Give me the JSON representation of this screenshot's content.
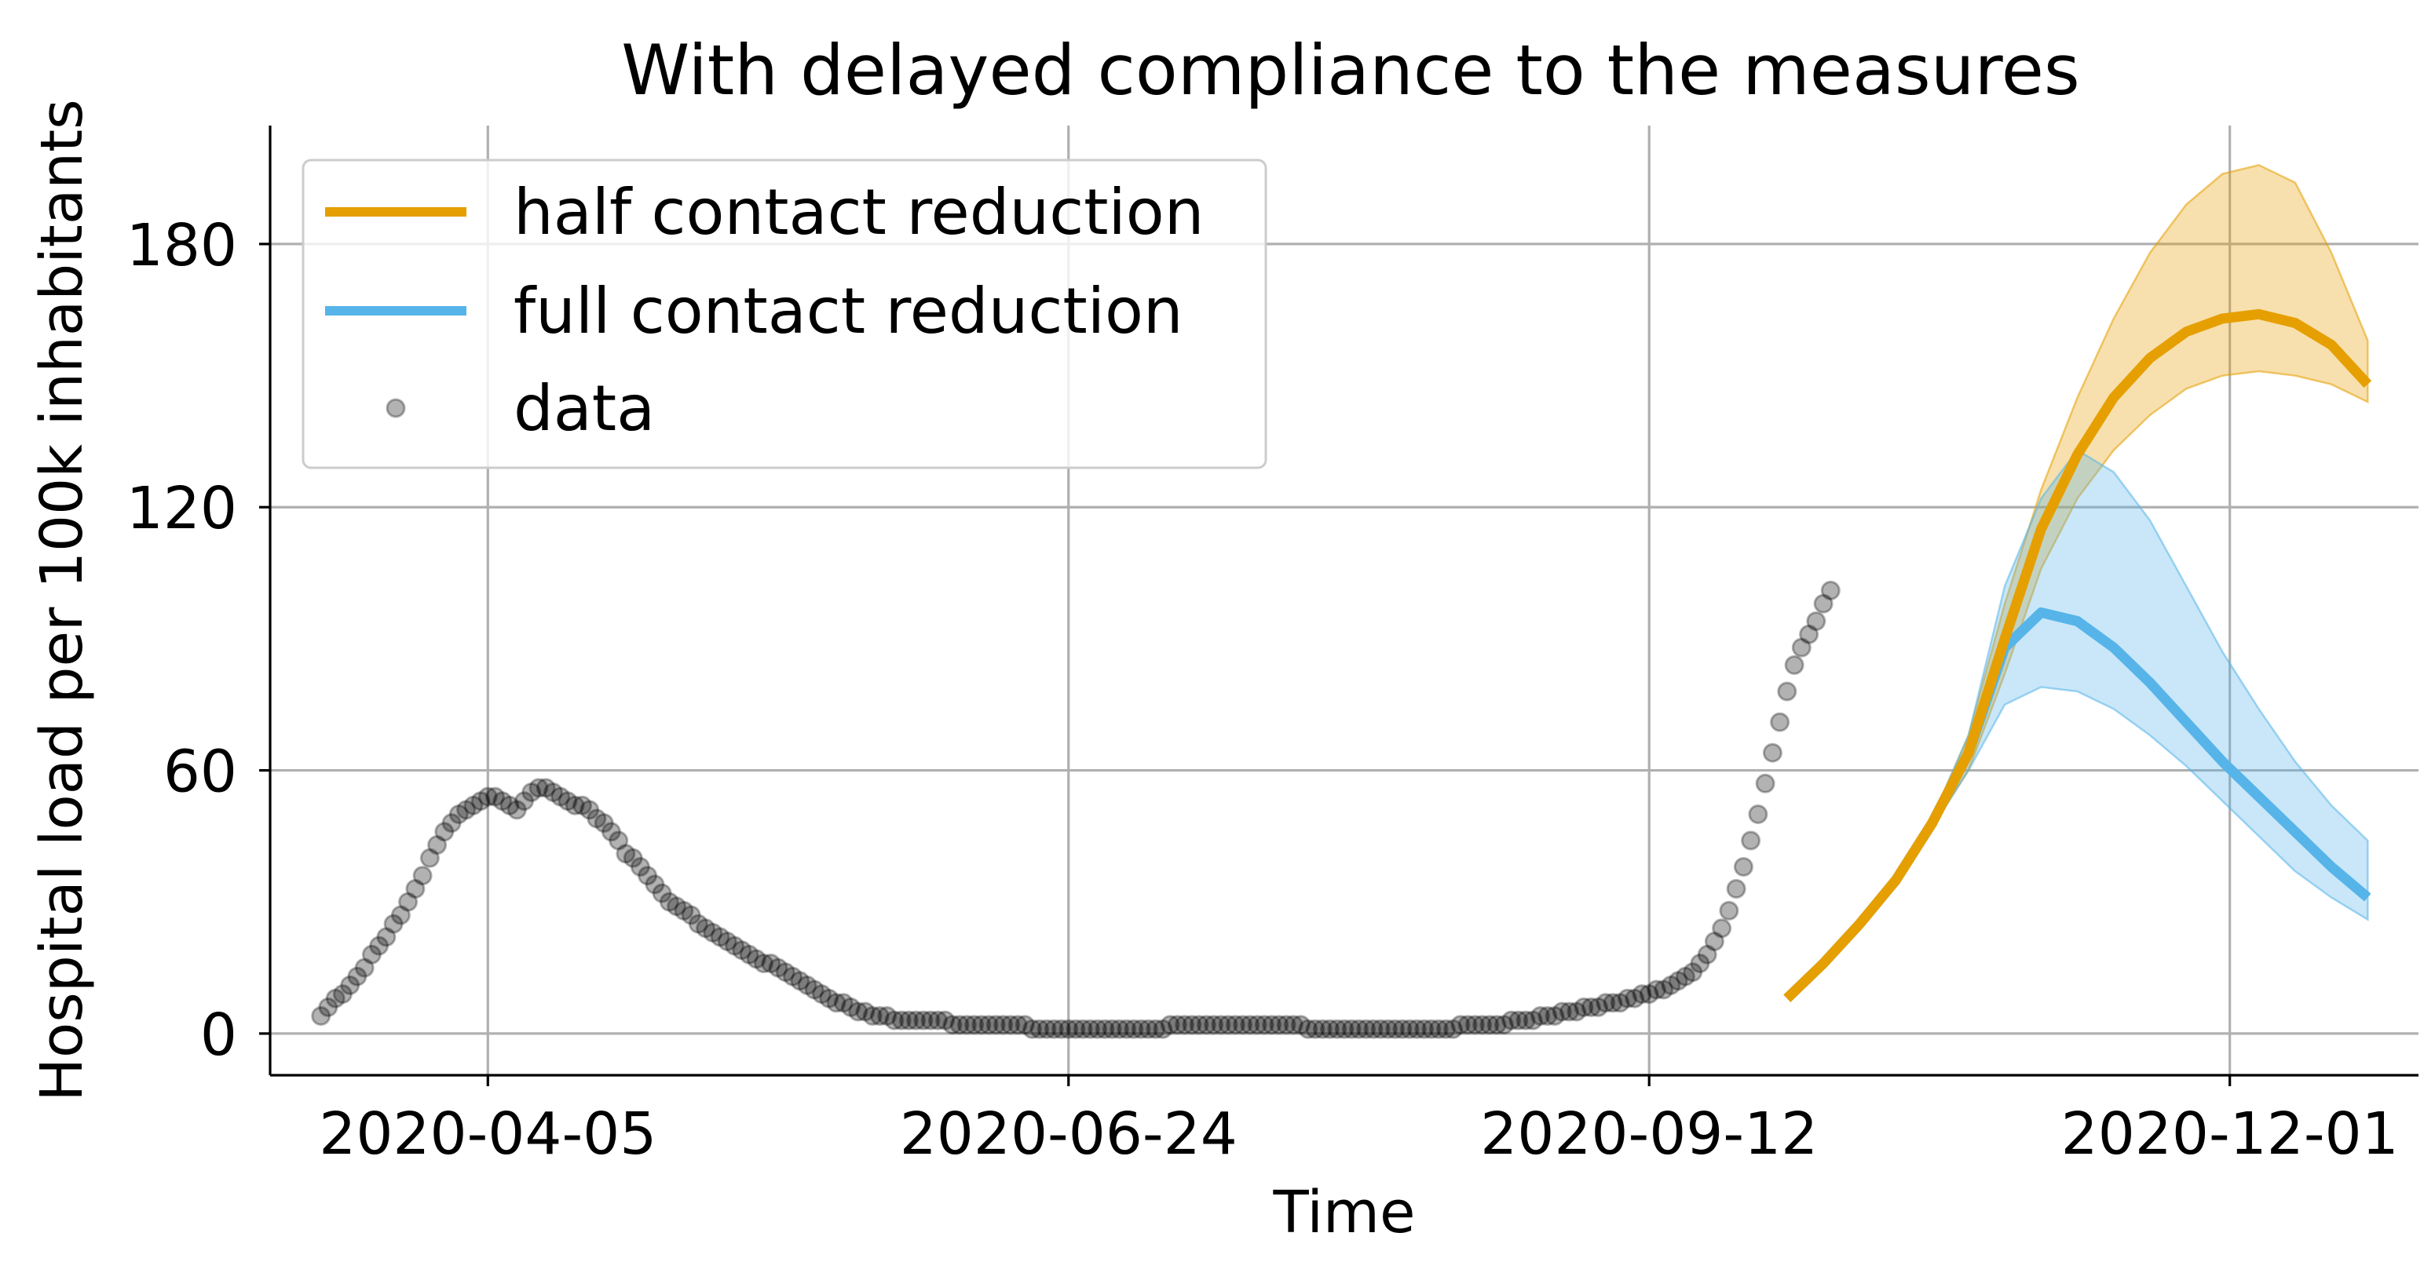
{
  "chart_data": {
    "type": "line",
    "title": "With delayed compliance to the measures",
    "xlabel": "Time",
    "ylabel": "Hospital load per 100k inhabitants",
    "x_tick_labels": [
      "2020-04-05",
      "2020-06-24",
      "2020-09-12",
      "2020-12-01"
    ],
    "x_tick_values": [
      "2020-04-05",
      "2020-06-24",
      "2020-09-12",
      "2020-12-01"
    ],
    "y_tick_values": [
      0,
      60,
      120,
      180
    ],
    "xlim": [
      "2020-03-06",
      "2020-12-27"
    ],
    "ylim": [
      -9.5,
      207
    ],
    "grid": true,
    "legend_position": "top-left",
    "legend": [
      {
        "label": "half contact reduction",
        "kind": "line",
        "color": "#E69F00"
      },
      {
        "label": "full contact reduction",
        "kind": "line",
        "color": "#56B4E9"
      },
      {
        "label": "data",
        "kind": "marker",
        "color": "#808080"
      }
    ],
    "series": [
      {
        "name": "half contact reduction",
        "color": "#E69F00",
        "x": [
          "2020-10-01",
          "2020-10-06",
          "2020-10-11",
          "2020-10-16",
          "2020-10-21",
          "2020-10-26",
          "2020-10-31",
          "2020-11-05",
          "2020-11-10",
          "2020-11-15",
          "2020-11-20",
          "2020-11-25",
          "2020-11-30",
          "2020-12-05",
          "2020-12-10",
          "2020-12-15",
          "2020-12-20"
        ],
        "y": [
          8,
          16,
          25,
          35,
          48,
          64,
          90,
          115,
          132,
          145,
          154,
          160,
          163,
          164,
          162,
          157,
          148
        ],
        "band_lower": [
          8,
          16,
          25,
          35,
          47,
          60,
          82,
          106,
          122,
          133,
          141,
          147,
          150,
          151,
          150,
          148,
          144
        ],
        "band_upper": [
          8,
          16,
          25,
          35,
          49,
          68,
          98,
          124,
          145,
          163,
          178,
          189,
          196,
          198,
          194,
          178,
          158
        ]
      },
      {
        "name": "full contact reduction",
        "color": "#56B4E9",
        "x": [
          "2020-10-01",
          "2020-10-06",
          "2020-10-11",
          "2020-10-16",
          "2020-10-21",
          "2020-10-26",
          "2020-10-31",
          "2020-11-05",
          "2020-11-10",
          "2020-11-15",
          "2020-11-20",
          "2020-11-25",
          "2020-11-30",
          "2020-12-05",
          "2020-12-10",
          "2020-12-15",
          "2020-12-20"
        ],
        "y": [
          8,
          16,
          25,
          35,
          48,
          64,
          88,
          96,
          94,
          88,
          80,
          71,
          62,
          54,
          46,
          38,
          31
        ],
        "band_lower": [
          8,
          16,
          25,
          35,
          47,
          60,
          75,
          79,
          78,
          74,
          68,
          61,
          53,
          45,
          37,
          31,
          26
        ],
        "band_upper": [
          8,
          16,
          25,
          35,
          49,
          68,
          102,
          122,
          133,
          128,
          117,
          102,
          87,
          74,
          62,
          52,
          44
        ]
      },
      {
        "name": "data",
        "color": "#000000",
        "kind": "scatter",
        "start_date": "2020-03-13",
        "y": [
          4,
          6,
          8,
          9,
          11,
          13,
          15,
          18,
          20,
          22,
          25,
          27,
          30,
          33,
          36,
          40,
          43,
          46,
          48,
          50,
          51,
          52,
          53,
          54,
          54,
          53,
          52,
          51,
          53,
          55,
          56,
          56,
          55,
          54,
          53,
          52,
          52,
          51,
          49,
          48,
          46,
          44,
          41,
          40,
          38,
          36,
          34,
          32,
          30,
          29,
          28,
          27,
          25,
          24,
          23,
          22,
          21,
          20,
          19,
          18,
          17,
          16,
          16,
          15,
          14,
          13,
          12,
          11,
          10,
          9,
          8,
          7,
          7,
          6,
          5,
          5,
          4,
          4,
          4,
          3,
          3,
          3,
          3,
          3,
          3,
          3,
          3,
          2,
          2,
          2,
          2,
          2,
          2,
          2,
          2,
          2,
          2,
          2,
          1,
          1,
          1,
          1,
          1,
          1,
          1,
          1,
          1,
          1,
          1,
          1,
          1,
          1,
          1,
          1,
          1,
          1,
          1,
          2,
          2,
          2,
          2,
          2,
          2,
          2,
          2,
          2,
          2,
          2,
          2,
          2,
          2,
          2,
          2,
          2,
          2,
          2,
          1,
          1,
          1,
          1,
          1,
          1,
          1,
          1,
          1,
          1,
          1,
          1,
          1,
          1,
          1,
          1,
          1,
          1,
          1,
          1,
          1,
          2,
          2,
          2,
          2,
          2,
          2,
          2,
          3,
          3,
          3,
          3,
          4,
          4,
          4,
          5,
          5,
          5,
          6,
          6,
          6,
          7,
          7,
          7,
          8,
          8,
          9,
          9,
          10,
          10,
          11,
          12,
          13,
          14,
          16,
          18,
          21,
          24,
          28,
          33,
          38,
          44,
          50,
          57,
          64,
          71,
          78,
          84,
          88,
          91,
          94,
          98,
          101
        ]
      }
    ]
  }
}
